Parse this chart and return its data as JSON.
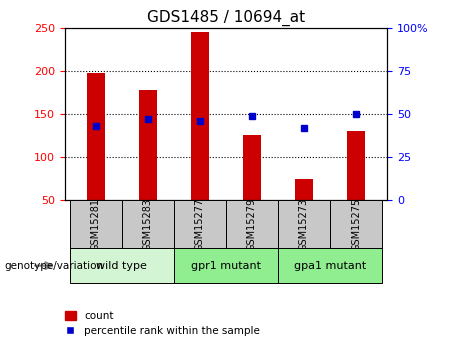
{
  "title": "GDS1485 / 10694_at",
  "samples": [
    "GSM15281",
    "GSM15283",
    "GSM15277",
    "GSM15279",
    "GSM15273",
    "GSM15275"
  ],
  "counts": [
    197,
    178,
    245,
    126,
    75,
    130
  ],
  "percentiles": [
    43,
    47,
    46,
    49,
    42,
    50
  ],
  "ylim_left": [
    50,
    250
  ],
  "ylim_right": [
    0,
    100
  ],
  "yticks_left": [
    50,
    100,
    150,
    200,
    250
  ],
  "yticks_right": [
    0,
    25,
    50,
    75,
    100
  ],
  "ytick_labels_right": [
    "0",
    "25",
    "50",
    "75",
    "100%"
  ],
  "bar_color": "#cc0000",
  "square_color": "#0000cc",
  "sample_box_color": "#c8c8c8",
  "group_ranges": [
    [
      -0.5,
      1.5,
      "wild type",
      "#d4f5d4"
    ],
    [
      1.5,
      3.5,
      "gpr1 mutant",
      "#90ee90"
    ],
    [
      3.5,
      5.5,
      "gpa1 mutant",
      "#90ee90"
    ]
  ],
  "legend_count_label": "count",
  "legend_percentile_label": "percentile rank within the sample",
  "genotype_label": "genotype/variation",
  "bar_width": 0.35
}
